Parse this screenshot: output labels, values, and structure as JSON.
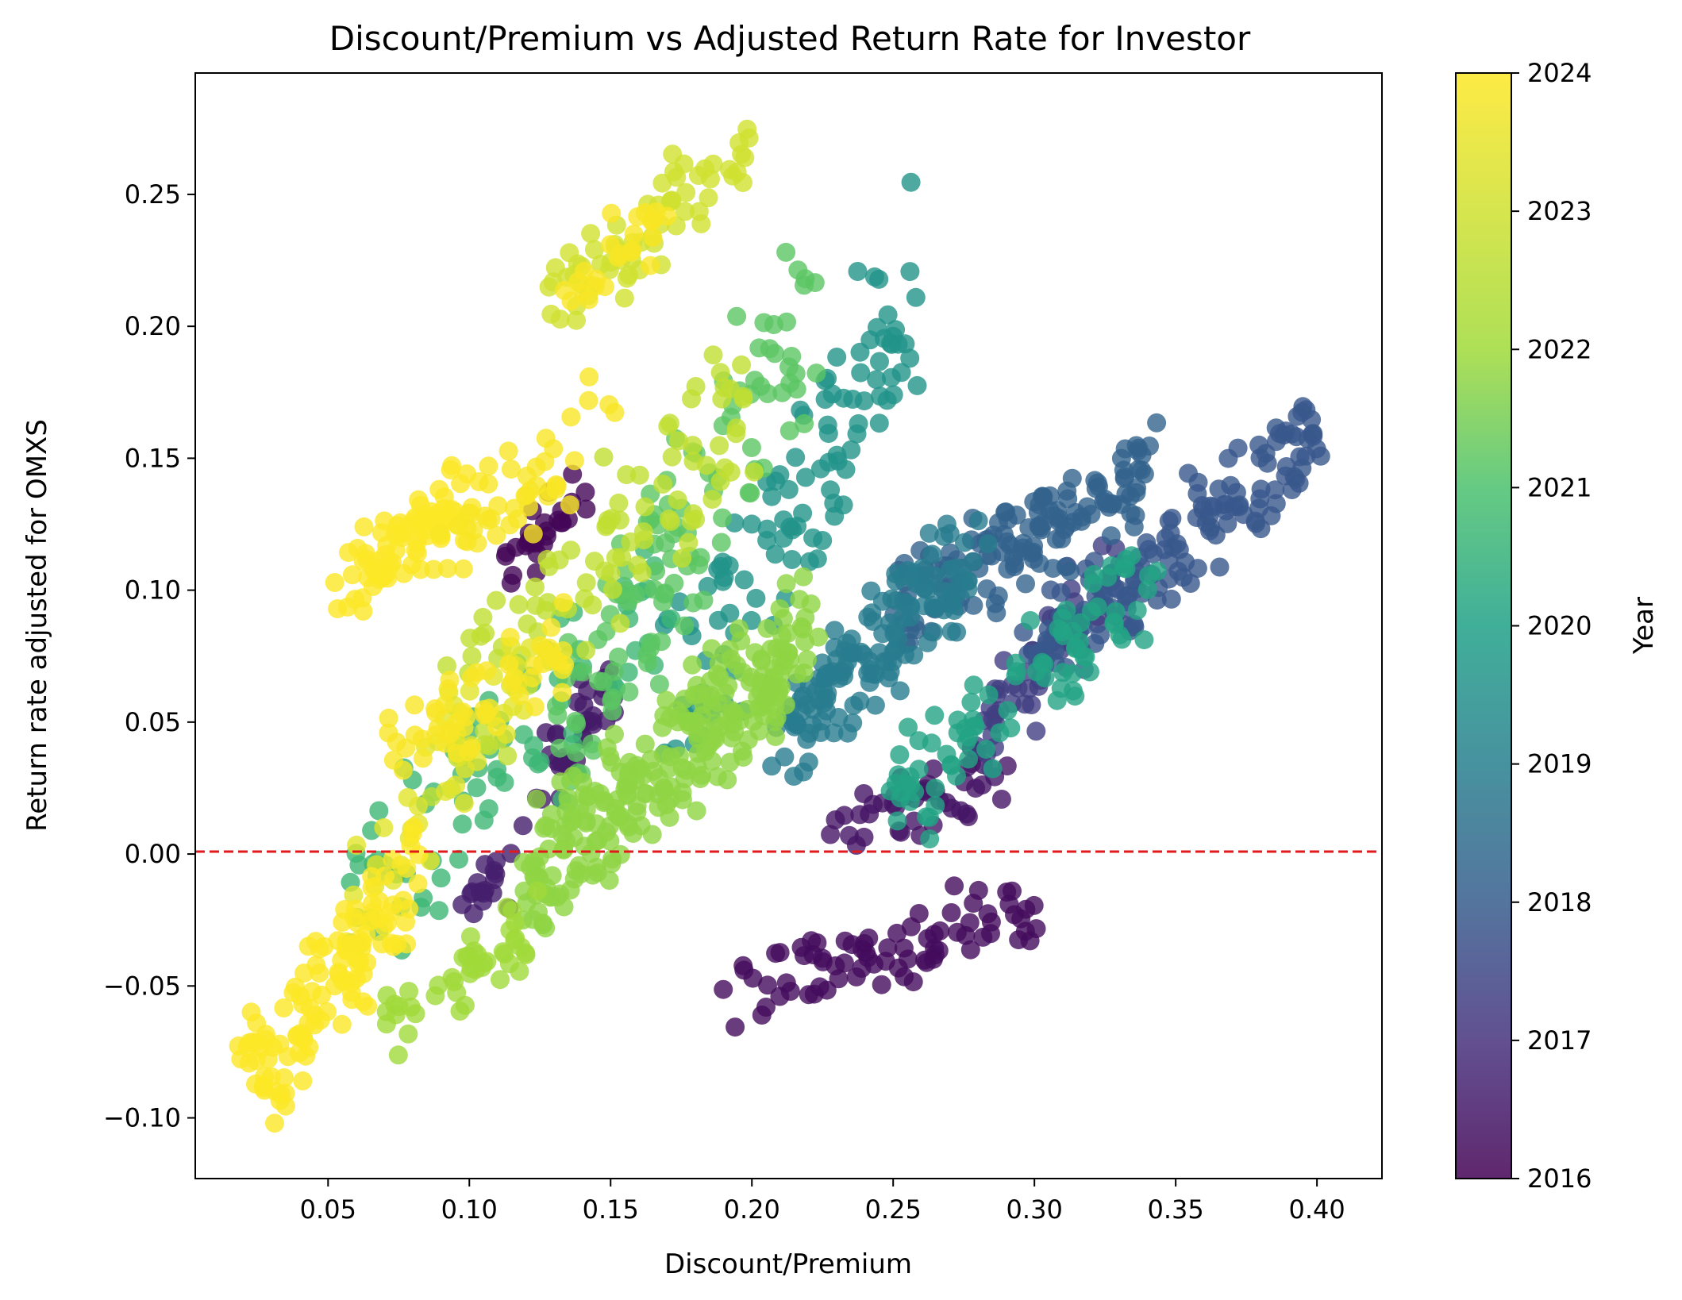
{
  "chart_data": {
    "type": "scatter",
    "title": "Discount/Premium vs Adjusted Return Rate for Investor",
    "xlabel": "Discount/Premium",
    "ylabel": "Return rate adjusted for OMXS",
    "xlim": [
      0.003,
      0.423
    ],
    "ylim": [
      -0.123,
      0.296
    ],
    "xticks": [
      0.05,
      0.1,
      0.15,
      0.2,
      0.25,
      0.3,
      0.35,
      0.4
    ],
    "xtick_labels": [
      "0.05",
      "0.10",
      "0.15",
      "0.20",
      "0.25",
      "0.30",
      "0.35",
      "0.40"
    ],
    "yticks": [
      -0.1,
      -0.05,
      0.0,
      0.05,
      0.1,
      0.15,
      0.2,
      0.25
    ],
    "ytick_labels": [
      "−0.10",
      "−0.05",
      "0.00",
      "0.05",
      "0.10",
      "0.15",
      "0.20",
      "0.25"
    ],
    "reference_line": {
      "y": 0.0,
      "color": "#e31a1c",
      "style": "dashed"
    },
    "colorbar": {
      "label": "Year",
      "min": 2016,
      "max": 2024,
      "ticks": [
        "2016",
        "2017",
        "2018",
        "2019",
        "2020",
        "2021",
        "2022",
        "2023",
        "2024"
      ],
      "colormap": "viridis"
    },
    "grid": false,
    "marker_alpha": 0.8,
    "clusters": [
      {
        "year": 2016.2,
        "n": 80,
        "x": [
          0.19,
          0.3
        ],
        "y": [
          -0.065,
          -0.012
        ]
      },
      {
        "year": 2016.4,
        "n": 45,
        "x": [
          0.23,
          0.29
        ],
        "y": [
          0.0,
          0.04
        ]
      },
      {
        "year": 2016.1,
        "n": 30,
        "x": [
          0.11,
          0.14
        ],
        "y": [
          0.1,
          0.14
        ]
      },
      {
        "year": 2016.5,
        "n": 35,
        "x": [
          0.125,
          0.15
        ],
        "y": [
          0.02,
          0.07
        ]
      },
      {
        "year": 2016.6,
        "n": 18,
        "x": [
          0.1,
          0.115
        ],
        "y": [
          -0.025,
          0.005
        ]
      },
      {
        "year": 2017.3,
        "n": 55,
        "x": [
          0.28,
          0.33
        ],
        "y": [
          0.03,
          0.12
        ]
      },
      {
        "year": 2017.9,
        "n": 150,
        "x": [
          0.3,
          0.4
        ],
        "y": [
          0.06,
          0.17
        ]
      },
      {
        "year": 2018.2,
        "n": 140,
        "x": [
          0.25,
          0.34
        ],
        "y": [
          0.08,
          0.155
        ]
      },
      {
        "year": 2018.9,
        "n": 140,
        "x": [
          0.21,
          0.28
        ],
        "y": [
          0.03,
          0.13
        ]
      },
      {
        "year": 2019.6,
        "n": 110,
        "x": [
          0.17,
          0.26
        ],
        "y": [
          0.02,
          0.25
        ]
      },
      {
        "year": 2020.1,
        "n": 90,
        "x": [
          0.25,
          0.34
        ],
        "y": [
          0.0,
          0.12
        ]
      },
      {
        "year": 2020.7,
        "n": 80,
        "x": [
          0.06,
          0.17
        ],
        "y": [
          -0.05,
          0.13
        ]
      },
      {
        "year": 2021.2,
        "n": 110,
        "x": [
          0.13,
          0.22
        ],
        "y": [
          0.0,
          0.24
        ]
      },
      {
        "year": 2021.8,
        "n": 260,
        "x": [
          0.12,
          0.22
        ],
        "y": [
          -0.03,
          0.1
        ]
      },
      {
        "year": 2022.0,
        "n": 45,
        "x": [
          0.07,
          0.12
        ],
        "y": [
          -0.075,
          -0.02
        ]
      },
      {
        "year": 2022.7,
        "n": 100,
        "x": [
          0.09,
          0.2
        ],
        "y": [
          0.02,
          0.2
        ]
      },
      {
        "year": 2023.0,
        "n": 65,
        "x": [
          0.13,
          0.2
        ],
        "y": [
          0.2,
          0.275
        ]
      },
      {
        "year": 2023.4,
        "n": 40,
        "x": [
          0.06,
          0.12
        ],
        "y": [
          -0.04,
          0.1
        ]
      },
      {
        "year": 2023.95,
        "n": 120,
        "x": [
          0.02,
          0.08
        ],
        "y": [
          -0.105,
          0.01
        ]
      },
      {
        "year": 2023.95,
        "n": 80,
        "x": [
          0.055,
          0.1
        ],
        "y": [
          0.09,
          0.145
        ]
      },
      {
        "year": 2023.9,
        "n": 55,
        "x": [
          0.07,
          0.135
        ],
        "y": [
          0.02,
          0.09
        ]
      },
      {
        "year": 2023.9,
        "n": 45,
        "x": [
          0.09,
          0.15
        ],
        "y": [
          0.1,
          0.185
        ]
      },
      {
        "year": 2023.9,
        "n": 25,
        "x": [
          0.135,
          0.17
        ],
        "y": [
          0.2,
          0.25
        ]
      }
    ]
  }
}
